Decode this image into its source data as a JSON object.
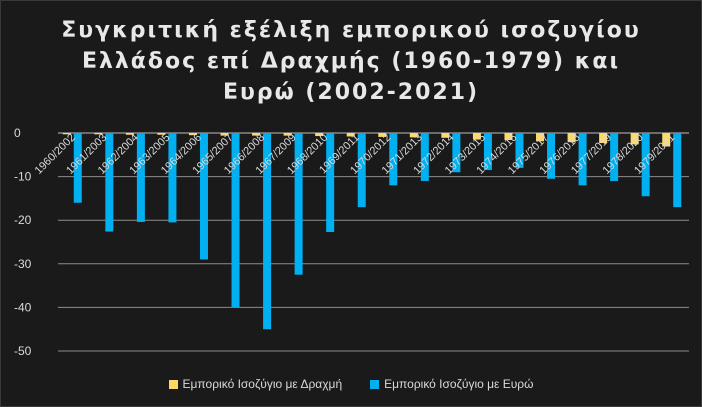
{
  "chart_data": {
    "type": "bar",
    "title_lines": [
      "Συγκριτική εξέλιξη εμπορικού ισοζυγίου",
      "Ελλάδος επί Δραχμής (1960-1979) και",
      "Ευρώ (2002-2021)"
    ],
    "categories": [
      "1960/2002",
      "1961/2003",
      "1962/2004",
      "1963/2005",
      "1964/2006",
      "1965/2007",
      "1966/2008",
      "1967/2009",
      "1968/2010",
      "1969/2011",
      "1970/2012",
      "1971/2013",
      "1972/2014",
      "1973/2015",
      "1974/2016",
      "1975/2017",
      "1976/2018",
      "1977/2019",
      "1978/2020",
      "1979/2021"
    ],
    "series": [
      {
        "name": "Εμπορικό Ισοζύγιο με Δραχμή",
        "color": "#ffd966",
        "values": [
          -0.3,
          -0.3,
          -0.4,
          -0.4,
          -0.5,
          -0.6,
          -0.6,
          -0.6,
          -0.7,
          -0.8,
          -0.9,
          -1.0,
          -1.1,
          -1.5,
          -1.6,
          -1.9,
          -2.1,
          -2.3,
          -2.6,
          -3.1
        ]
      },
      {
        "name": "Εμπορικό Ισοζύγιο με Ευρώ",
        "color": "#00b0f0",
        "values": [
          -16.0,
          -22.6,
          -20.4,
          -20.5,
          -29.0,
          -40.0,
          -45.0,
          -32.5,
          -22.7,
          -17.0,
          -12.0,
          -11.0,
          -9.0,
          -8.5,
          -8.0,
          -10.5,
          -12.0,
          -11.0,
          -14.5,
          -17.0
        ]
      }
    ],
    "ylim": [
      -50,
      0
    ],
    "yticks": [
      0,
      -10,
      -20,
      -30,
      -40,
      -50
    ],
    "grid": true,
    "legend_position": "bottom"
  }
}
